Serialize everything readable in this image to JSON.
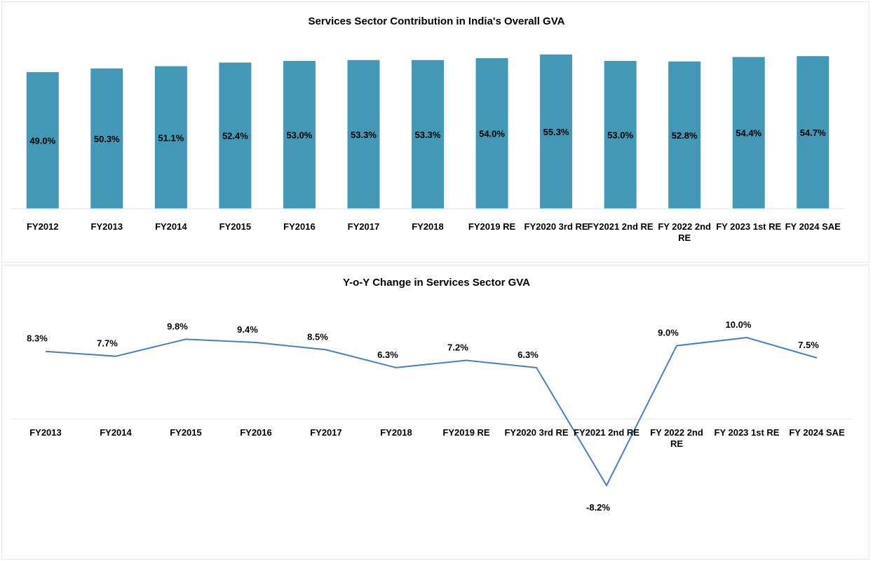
{
  "chart_data": [
    {
      "type": "bar",
      "title": "Services Sector Contribution in India's Overall GVA",
      "categories": [
        "FY2012",
        "FY2013",
        "FY2014",
        "FY2015",
        "FY2016",
        "FY2017",
        "FY2018",
        "FY2019 RE",
        "FY2020 3rd RE",
        "FY2021 2nd RE",
        "FY 2022 2nd RE",
        "FY 2023 1st RE",
        "FY 2024 SAE"
      ],
      "values": [
        49.0,
        50.3,
        51.1,
        52.4,
        53.0,
        53.3,
        53.3,
        54.0,
        55.3,
        53.0,
        52.8,
        54.4,
        54.7
      ],
      "value_labels": [
        "49.0%",
        "50.3%",
        "51.1%",
        "52.4%",
        "53.0%",
        "53.3%",
        "53.3%",
        "54.0%",
        "55.3%",
        "53.0%",
        "52.8%",
        "54.4%",
        "54.7%"
      ],
      "color": "#4398b6",
      "ylim": [
        0,
        56
      ]
    },
    {
      "type": "line",
      "title": "Y-o-Y Change in Services Sector GVA",
      "categories": [
        "FY2013",
        "FY2014",
        "FY2015",
        "FY2016",
        "FY2017",
        "FY2018",
        "FY2019 RE",
        "FY2020 3rd RE",
        "FY2021 2nd RE",
        "FY 2022 2nd RE",
        "FY 2023 1st RE",
        "FY 2024 SAE"
      ],
      "values": [
        8.3,
        7.7,
        9.8,
        9.4,
        8.5,
        6.3,
        7.2,
        6.3,
        -8.2,
        9.0,
        10.0,
        7.5
      ],
      "value_labels": [
        "8.3%",
        "7.7%",
        "9.8%",
        "9.4%",
        "8.5%",
        "6.3%",
        "7.2%",
        "6.3%",
        "-8.2%",
        "9.0%",
        "10.0%",
        "7.5%"
      ],
      "color": "#4a7ebb",
      "ylim": [
        -15,
        15
      ]
    }
  ]
}
